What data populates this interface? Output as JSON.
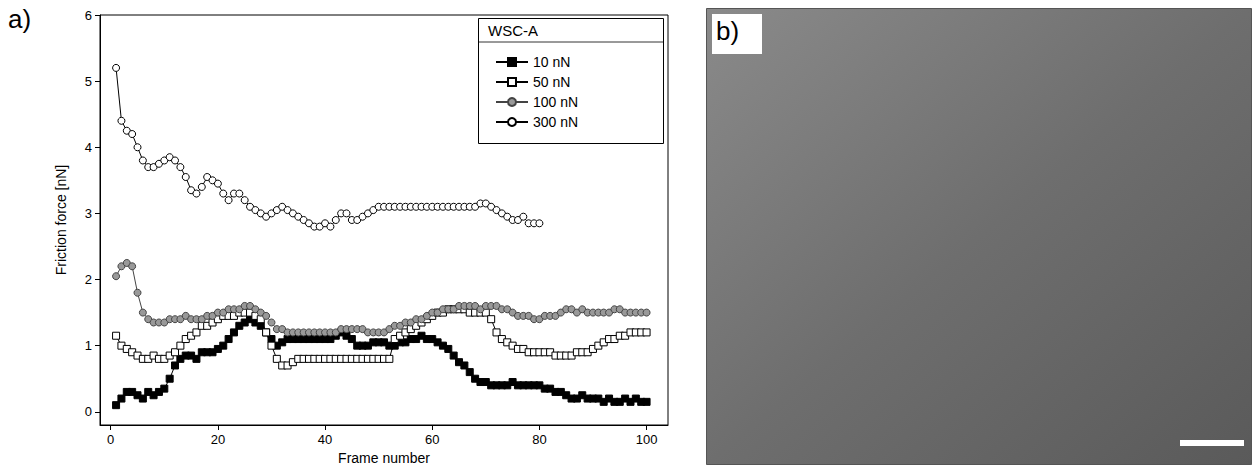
{
  "chart_data": {
    "type": "line",
    "panel_label": "a)",
    "x_label": "Frame number",
    "y_label": "Friction force [nN]",
    "legend_title": "WSC-A",
    "legend": "upper right",
    "grid": false,
    "xlim": [
      -2,
      104
    ],
    "xticks": [
      0,
      20,
      40,
      60,
      80,
      100
    ],
    "ylim": [
      -0.2,
      6
    ],
    "yticks": [
      0,
      1,
      2,
      3,
      4,
      5,
      6
    ],
    "x": [
      1,
      2,
      3,
      4,
      5,
      6,
      7,
      8,
      9,
      10,
      11,
      12,
      13,
      14,
      15,
      16,
      17,
      18,
      19,
      20,
      21,
      22,
      23,
      24,
      25,
      26,
      27,
      28,
      29,
      30,
      31,
      32,
      33,
      34,
      35,
      36,
      37,
      38,
      39,
      40,
      41,
      42,
      43,
      44,
      45,
      46,
      47,
      48,
      49,
      50,
      51,
      52,
      53,
      54,
      55,
      56,
      57,
      58,
      59,
      60,
      61,
      62,
      63,
      64,
      65,
      66,
      67,
      68,
      69,
      70,
      71,
      72,
      73,
      74,
      75,
      76,
      77,
      78,
      79,
      80,
      81,
      82,
      83,
      84,
      85,
      86,
      87,
      88,
      89,
      90,
      91,
      92,
      93,
      94,
      95,
      96,
      97,
      98,
      99,
      100
    ],
    "series": [
      {
        "name": "10 nN",
        "color": "#000000",
        "marker": "square-filled",
        "values": [
          0.1,
          0.2,
          0.3,
          0.3,
          0.25,
          0.2,
          0.3,
          0.25,
          0.3,
          0.35,
          0.5,
          0.7,
          0.8,
          0.85,
          0.85,
          0.8,
          0.9,
          0.9,
          0.9,
          0.95,
          1,
          1.1,
          1.2,
          1.3,
          1.35,
          1.4,
          1.35,
          1.3,
          1.2,
          1.1,
          1,
          1.05,
          1.1,
          1.1,
          1.1,
          1.1,
          1.1,
          1.1,
          1.1,
          1.1,
          1.1,
          1.15,
          1.2,
          1.15,
          1.1,
          1,
          1,
          1,
          1.05,
          1.05,
          1.05,
          1,
          1,
          1.05,
          1.05,
          1.1,
          1.1,
          1.15,
          1.1,
          1.1,
          1.05,
          1,
          0.95,
          0.85,
          0.75,
          0.7,
          0.6,
          0.5,
          0.45,
          0.45,
          0.4,
          0.4,
          0.4,
          0.4,
          0.45,
          0.4,
          0.4,
          0.4,
          0.4,
          0.4,
          0.35,
          0.35,
          0.3,
          0.3,
          0.25,
          0.2,
          0.2,
          0.25,
          0.2,
          0.2,
          0.2,
          0.15,
          0.2,
          0.15,
          0.15,
          0.2,
          0.15,
          0.2,
          0.15,
          0.15
        ]
      },
      {
        "name": "50 nN",
        "color": "#000000",
        "marker": "square-open",
        "values": [
          1.15,
          1,
          0.95,
          0.9,
          0.85,
          0.8,
          0.8,
          0.85,
          0.8,
          0.8,
          0.85,
          0.9,
          1,
          1.1,
          1.15,
          1.2,
          1.3,
          1.3,
          1.35,
          1.4,
          1.45,
          1.45,
          1.45,
          1.5,
          1.5,
          1.5,
          1.45,
          1.4,
          1.2,
          1,
          0.8,
          0.7,
          0.7,
          0.75,
          0.8,
          0.8,
          0.8,
          0.8,
          0.8,
          0.8,
          0.8,
          0.8,
          0.8,
          0.8,
          0.8,
          0.8,
          0.8,
          0.8,
          0.8,
          0.8,
          0.8,
          0.8,
          1.1,
          1.15,
          1.2,
          1.25,
          1.3,
          1.35,
          1.4,
          1.45,
          1.5,
          1.5,
          1.55,
          1.55,
          1.55,
          1.55,
          1.5,
          1.5,
          1.5,
          1.5,
          1.4,
          1.2,
          1.1,
          1.05,
          1,
          0.95,
          0.95,
          0.9,
          0.9,
          0.9,
          0.9,
          0.9,
          0.85,
          0.85,
          0.85,
          0.85,
          0.9,
          0.9,
          0.9,
          0.95,
          1,
          1.05,
          1.1,
          1.1,
          1.15,
          1.15,
          1.2,
          1.2,
          1.2,
          1.2
        ]
      },
      {
        "name": "100 nN",
        "color": "#999999",
        "marker": "circle-filled",
        "values": [
          2.05,
          2.2,
          2.25,
          2.2,
          1.8,
          1.5,
          1.4,
          1.35,
          1.35,
          1.35,
          1.4,
          1.4,
          1.4,
          1.45,
          1.4,
          1.4,
          1.4,
          1.45,
          1.45,
          1.5,
          1.5,
          1.55,
          1.55,
          1.55,
          1.6,
          1.6,
          1.55,
          1.5,
          1.45,
          1.35,
          1.25,
          1.25,
          1.2,
          1.2,
          1.2,
          1.2,
          1.2,
          1.2,
          1.2,
          1.2,
          1.2,
          1.2,
          1.25,
          1.25,
          1.25,
          1.25,
          1.25,
          1.2,
          1.2,
          1.2,
          1.2,
          1.25,
          1.3,
          1.3,
          1.35,
          1.35,
          1.4,
          1.4,
          1.45,
          1.5,
          1.5,
          1.55,
          1.55,
          1.55,
          1.6,
          1.6,
          1.6,
          1.6,
          1.55,
          1.6,
          1.6,
          1.6,
          1.55,
          1.55,
          1.5,
          1.45,
          1.45,
          1.45,
          1.4,
          1.4,
          1.45,
          1.45,
          1.45,
          1.5,
          1.55,
          1.55,
          1.5,
          1.55,
          1.5,
          1.5,
          1.5,
          1.5,
          1.5,
          1.55,
          1.55,
          1.5,
          1.5,
          1.5,
          1.5,
          1.5
        ]
      },
      {
        "name": "300 nN",
        "color": "#000000",
        "marker": "circle-open",
        "values": [
          5.2,
          4.4,
          4.25,
          4.2,
          4,
          3.8,
          3.7,
          3.7,
          3.75,
          3.8,
          3.85,
          3.8,
          3.7,
          3.55,
          3.35,
          3.3,
          3.4,
          3.55,
          3.5,
          3.45,
          3.3,
          3.2,
          3.3,
          3.3,
          3.2,
          3.1,
          3.05,
          3,
          2.95,
          3,
          3.05,
          3.1,
          3.05,
          3,
          2.95,
          2.9,
          2.85,
          2.8,
          2.8,
          2.85,
          2.8,
          2.9,
          3,
          3,
          2.9,
          2.9,
          2.95,
          3,
          3.05,
          3.1,
          3.1,
          3.1,
          3.1,
          3.1,
          3.1,
          3.1,
          3.1,
          3.1,
          3.1,
          3.1,
          3.1,
          3.1,
          3.1,
          3.1,
          3.1,
          3.1,
          3.1,
          3.1,
          3.15,
          3.15,
          3.1,
          3.05,
          3,
          2.95,
          2.9,
          2.9,
          2.95,
          2.85,
          2.85,
          2.85,
          null,
          null,
          null,
          null,
          null,
          null,
          null,
          null,
          null,
          null,
          null,
          null,
          null,
          null,
          null,
          null,
          null,
          null,
          null,
          null
        ]
      }
    ]
  },
  "image_panel": {
    "label": "b)"
  }
}
